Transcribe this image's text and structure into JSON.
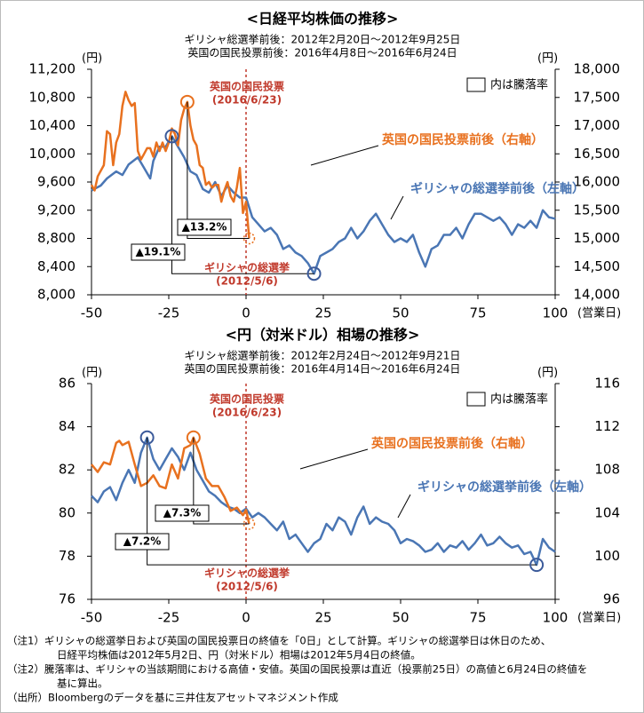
{
  "chart_data": [
    {
      "type": "line",
      "title": "<日経平均株価の推移>",
      "subtitles": [
        "ギリシャ総選挙前後：2012年2月20日～2012年9月25日",
        "英国の国民投票前後：2016年4月8日～2016年6月24日"
      ],
      "ylabel": "(円)",
      "y2label": "(円)",
      "xlabel": "(営業日)",
      "legend_note": "内は騰落率",
      "xlim": [
        -50,
        100
      ],
      "xticks": [
        -50,
        -25,
        0,
        25,
        50,
        75,
        100
      ],
      "ylim": [
        8000,
        11200
      ],
      "yticks": [
        {
          "value": 8000,
          "label": "8,000"
        },
        {
          "value": 8400,
          "label": "8,400"
        },
        {
          "value": 8800,
          "label": "8,800"
        },
        {
          "value": 9200,
          "label": "9,200"
        },
        {
          "value": 9600,
          "label": "9,600"
        },
        {
          "value": 10000,
          "label": "10,000"
        },
        {
          "value": 10400,
          "label": "10,400"
        },
        {
          "value": 10800,
          "label": "10,800"
        },
        {
          "value": 11200,
          "label": "11,200"
        }
      ],
      "y2lim": [
        14000,
        18000
      ],
      "y2ticks": [
        {
          "value": 14000,
          "label": "14,000"
        },
        {
          "value": 14500,
          "label": "14,500"
        },
        {
          "value": 15000,
          "label": "15,000"
        },
        {
          "value": 15500,
          "label": "15,500"
        },
        {
          "value": 16000,
          "label": "16,000"
        },
        {
          "value": 16500,
          "label": "16,500"
        },
        {
          "value": 17000,
          "label": "17,000"
        },
        {
          "value": 17500,
          "label": "17,500"
        },
        {
          "value": 18000,
          "label": "18,000"
        }
      ],
      "series": [
        {
          "name": "ギリシャの総選挙前後（左軸）",
          "color": "#4a76b4",
          "axis": "y",
          "x": [
            -50,
            -47,
            -45,
            -42,
            -40,
            -38,
            -35,
            -33,
            -31,
            -30,
            -28,
            -26,
            -24,
            -22,
            -20,
            -18,
            -16,
            -14,
            -12,
            -10,
            -8,
            -6,
            -4,
            -2,
            0,
            2,
            4,
            6,
            8,
            10,
            12,
            14,
            16,
            18,
            20,
            22,
            24,
            26,
            28,
            30,
            32,
            34,
            36,
            38,
            40,
            42,
            44,
            46,
            48,
            50,
            52,
            54,
            56,
            58,
            60,
            62,
            64,
            66,
            68,
            70,
            72,
            74,
            76,
            78,
            80,
            82,
            84,
            86,
            88,
            90,
            92,
            94,
            96,
            98,
            100
          ],
          "values": [
            9480,
            9550,
            9650,
            9750,
            9700,
            9850,
            9950,
            9800,
            9650,
            9900,
            10100,
            10100,
            10250,
            10100,
            9950,
            9750,
            9700,
            9500,
            9450,
            9600,
            9400,
            9550,
            9450,
            9380,
            9380,
            9100,
            9000,
            8900,
            8950,
            8850,
            8650,
            8700,
            8600,
            8550,
            8450,
            8300,
            8550,
            8600,
            8650,
            8750,
            8800,
            8950,
            8800,
            8900,
            9050,
            9150,
            9000,
            8850,
            8750,
            8800,
            8750,
            8850,
            8600,
            8400,
            8650,
            8700,
            8850,
            8850,
            8950,
            8800,
            9000,
            9150,
            9150,
            9100,
            9050,
            9100,
            9000,
            8850,
            9000,
            8950,
            9050,
            8950,
            9200,
            9100,
            9080
          ]
        },
        {
          "name": "英国の国民投票前後（右軸）",
          "color": "#e8711f",
          "axis": "y2",
          "x": [
            -50,
            -49,
            -48,
            -46,
            -45,
            -44,
            -43,
            -42,
            -41,
            -40,
            -39,
            -38,
            -37,
            -36,
            -35,
            -34,
            -33,
            -32,
            -31,
            -30,
            -29,
            -28,
            -27,
            -26,
            -25,
            -24,
            -23,
            -22,
            -21,
            -20,
            -19,
            -18,
            -17,
            -16,
            -15,
            -14,
            -13,
            -12,
            -11,
            -10,
            -9,
            -8,
            -7,
            -6,
            -5,
            -4,
            -3,
            -2,
            -1,
            0,
            1
          ],
          "values": [
            15950,
            15850,
            16100,
            16300,
            16900,
            16850,
            16300,
            16700,
            16850,
            17350,
            17600,
            17450,
            17350,
            17400,
            16550,
            16400,
            16500,
            16600,
            16600,
            16450,
            16700,
            16550,
            16700,
            16550,
            16700,
            16950,
            16850,
            16650,
            17100,
            17300,
            17420,
            17000,
            16750,
            16650,
            16300,
            16250,
            15950,
            16000,
            15900,
            15950,
            15950,
            15650,
            15850,
            16000,
            15750,
            15650,
            15900,
            16250,
            15450,
            15650,
            15000
          ]
        }
      ],
      "annotations": [
        "英国の国民投票",
        "(2016/6/23)",
        "ギリシャの総選挙",
        "(2012/5/6)",
        "▲13.2%",
        "▲19.1%"
      ]
    },
    {
      "type": "line",
      "title": "<円（対米ドル）相場の推移>",
      "subtitles": [
        "ギリシャ総選挙前後：2012年2月24日～2012年9月21日",
        "英国の国民投票前後：2016年4月14日～2016年6月24日"
      ],
      "ylabel": "(円)",
      "y2label": "(円)",
      "xlabel": "(営業日)",
      "legend_note": "内は騰落率",
      "xlim": [
        -50,
        100
      ],
      "xticks": [
        -50,
        -25,
        0,
        25,
        50,
        75,
        100
      ],
      "ylim": [
        76,
        86
      ],
      "yticks": [
        76,
        78,
        80,
        82,
        84,
        86
      ],
      "y2lim": [
        96,
        116
      ],
      "y2ticks": [
        96,
        100,
        104,
        108,
        112,
        116
      ],
      "series": [
        {
          "name": "ギリシャの総選挙前後（左軸）",
          "color": "#4a76b4",
          "axis": "y",
          "x": [
            -50,
            -48,
            -46,
            -44,
            -42,
            -40,
            -38,
            -36,
            -34,
            -32,
            -30,
            -28,
            -26,
            -24,
            -22,
            -20,
            -18,
            -16,
            -14,
            -12,
            -10,
            -8,
            -6,
            -4,
            -2,
            0,
            2,
            4,
            6,
            8,
            10,
            12,
            14,
            16,
            18,
            20,
            22,
            24,
            26,
            28,
            30,
            32,
            34,
            36,
            38,
            40,
            42,
            44,
            46,
            48,
            50,
            52,
            54,
            56,
            58,
            60,
            62,
            64,
            66,
            68,
            70,
            72,
            74,
            76,
            78,
            80,
            82,
            84,
            86,
            88,
            90,
            92,
            94,
            96,
            98,
            100
          ],
          "values": [
            80.8,
            80.5,
            81.0,
            81.2,
            80.6,
            81.4,
            82.0,
            81.4,
            82.8,
            83.5,
            82.5,
            82.0,
            82.5,
            83.0,
            82.6,
            82.0,
            82.8,
            82.0,
            81.5,
            81.0,
            80.8,
            80.5,
            80.3,
            80.2,
            80.0,
            80.2,
            79.8,
            80.0,
            79.8,
            79.5,
            79.2,
            79.6,
            78.8,
            79.0,
            78.6,
            78.2,
            78.6,
            78.8,
            79.5,
            79.2,
            79.8,
            79.6,
            79.0,
            79.8,
            80.3,
            79.5,
            79.8,
            79.6,
            79.5,
            79.2,
            78.6,
            78.8,
            78.7,
            78.5,
            78.2,
            78.3,
            78.6,
            78.2,
            78.5,
            78.4,
            78.7,
            78.3,
            78.6,
            79.0,
            78.5,
            78.6,
            78.9,
            78.6,
            78.4,
            78.5,
            78.1,
            78.2,
            77.6,
            78.8,
            78.4,
            78.2
          ]
        },
        {
          "name": "英国の国民投票前後（右軸）",
          "color": "#e8711f",
          "axis": "y2",
          "x": [
            -50,
            -48,
            -46,
            -44,
            -42,
            -41,
            -40,
            -38,
            -36,
            -34,
            -32,
            -30,
            -28,
            -26,
            -24,
            -22,
            -20,
            -18,
            -17,
            -15,
            -13,
            -11,
            -9,
            -7,
            -5,
            -3,
            -1,
            0,
            1
          ],
          "values": [
            108.5,
            107.8,
            108.7,
            108.5,
            110.5,
            110.7,
            110.3,
            110.6,
            108.5,
            106.5,
            106.8,
            107.5,
            106.5,
            106.3,
            108.5,
            107.2,
            110.0,
            110.3,
            111.0,
            109.5,
            107.2,
            106.5,
            106.5,
            105.5,
            104.2,
            104.5,
            103.8,
            104.3,
            103.0
          ]
        }
      ],
      "annotations": [
        "英国の国民投票",
        "(2016/6/23)",
        "ギリシャの総選挙",
        "(2012/5/6)",
        "▲7.3%",
        "▲7.2%"
      ]
    }
  ],
  "notes": [
    "（注1）ギリシャの総選挙日および英国の国民投票日の終値を「0日」として計算。ギリシャの総選挙日は休日のため、",
    "日経平均株価は2012年5月2日、円（対米ドル）相場は2012年5月4日の終値。",
    "（注2）騰落率は、ギリシャの当該期間における高値・安値。英国の国民投票は直近（投票前25日）の高値と6月24日の終値を",
    "基に算出。",
    "（出所）Bloombergのデータを基に三井住友アセットマネジメント作成"
  ]
}
